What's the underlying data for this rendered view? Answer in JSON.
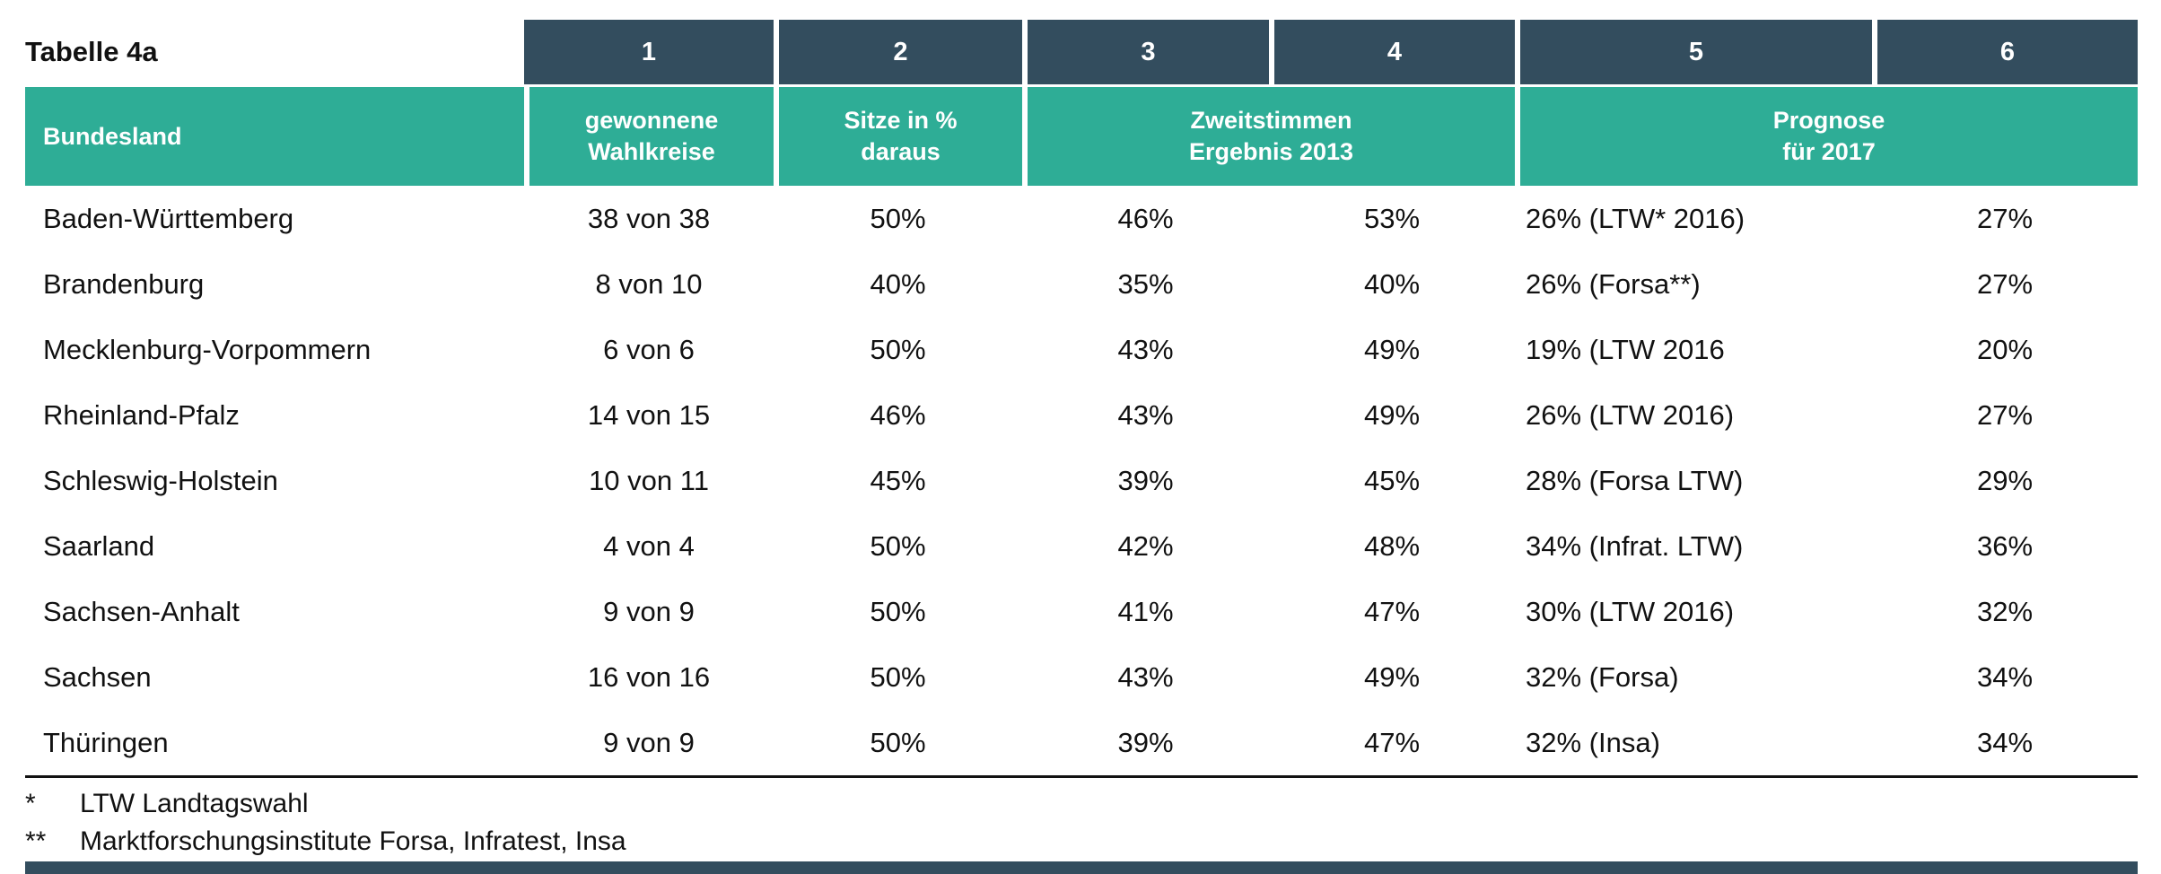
{
  "title": "Tabelle 4a",
  "colors": {
    "header_dark": "#334d5e",
    "header_teal": "#2ead96",
    "text": "#111111"
  },
  "table": {
    "number_row": [
      "1",
      "2",
      "3",
      "4",
      "5",
      "6"
    ],
    "header": {
      "bundesland": "Bundesland",
      "wahlkreise": "gewonnene\nWahlkreise",
      "sitze": "Sitze in %\ndaraus",
      "zweitstimmen": "Zweitstimmen\nErgebnis 2013",
      "prognose": "Prognose\nfür 2017"
    },
    "rows": [
      {
        "bundesland": "Baden-Württemberg",
        "wahlkreise": "38 von 38",
        "sitze": "50%",
        "zweit_a": "46%",
        "zweit_b": "53%",
        "prognose_a": "26% (LTW* 2016)",
        "prognose_b": "27%"
      },
      {
        "bundesland": "Brandenburg",
        "wahlkreise": "8 von 10",
        "sitze": "40%",
        "zweit_a": "35%",
        "zweit_b": "40%",
        "prognose_a": "26% (Forsa**)",
        "prognose_b": "27%"
      },
      {
        "bundesland": "Mecklenburg-Vorpommern",
        "wahlkreise": "6 von 6",
        "sitze": "50%",
        "zweit_a": "43%",
        "zweit_b": "49%",
        "prognose_a": "19% (LTW 2016",
        "prognose_b": "20%"
      },
      {
        "bundesland": "Rheinland-Pfalz",
        "wahlkreise": "14 von 15",
        "sitze": "46%",
        "zweit_a": "43%",
        "zweit_b": "49%",
        "prognose_a": "26% (LTW 2016)",
        "prognose_b": "27%"
      },
      {
        "bundesland": "Schleswig-Holstein",
        "wahlkreise": "10 von 11",
        "sitze": "45%",
        "zweit_a": "39%",
        "zweit_b": "45%",
        "prognose_a": "28% (Forsa LTW)",
        "prognose_b": "29%"
      },
      {
        "bundesland": "Saarland",
        "wahlkreise": "4 von 4",
        "sitze": "50%",
        "zweit_a": "42%",
        "zweit_b": "48%",
        "prognose_a": "34% (Infrat. LTW)",
        "prognose_b": "36%"
      },
      {
        "bundesland": "Sachsen-Anhalt",
        "wahlkreise": "9 von 9",
        "sitze": "50%",
        "zweit_a": "41%",
        "zweit_b": "47%",
        "prognose_a": "30% (LTW 2016)",
        "prognose_b": "32%"
      },
      {
        "bundesland": "Sachsen",
        "wahlkreise": "16 von 16",
        "sitze": "50%",
        "zweit_a": "43%",
        "zweit_b": "49%",
        "prognose_a": "32% (Forsa)",
        "prognose_b": "34%"
      },
      {
        "bundesland": "Thüringen",
        "wahlkreise": "9 von 9",
        "sitze": "50%",
        "zweit_a": "39%",
        "zweit_b": "47%",
        "prognose_a": "32% (Insa)",
        "prognose_b": "34%"
      }
    ]
  },
  "footnotes": [
    {
      "marker": "*",
      "text": "LTW Landtagswahl"
    },
    {
      "marker": "**",
      "text": "Marktforschungsinstitute Forsa, Infratest, Insa"
    }
  ],
  "chart_data": {
    "type": "table",
    "title": "Tabelle 4a",
    "columns": [
      "Bundesland",
      "1 gewonnene Wahlkreise",
      "2 Sitze in % daraus",
      "3 Zweitstimmen Ergebnis 2013",
      "4 Zweitstimmen Ergebnis 2013",
      "5 Prognose für 2017",
      "6 Prognose für 2017"
    ],
    "rows": [
      [
        "Baden-Württemberg",
        "38 von 38",
        "50%",
        "46%",
        "53%",
        "26% (LTW* 2016)",
        "27%"
      ],
      [
        "Brandenburg",
        "8 von 10",
        "40%",
        "35%",
        "40%",
        "26% (Forsa**)",
        "27%"
      ],
      [
        "Mecklenburg-Vorpommern",
        "6 von 6",
        "50%",
        "43%",
        "49%",
        "19% (LTW 2016",
        "20%"
      ],
      [
        "Rheinland-Pfalz",
        "14 von 15",
        "46%",
        "43%",
        "49%",
        "26% (LTW 2016)",
        "27%"
      ],
      [
        "Schleswig-Holstein",
        "10 von 11",
        "45%",
        "39%",
        "45%",
        "28% (Forsa LTW)",
        "29%"
      ],
      [
        "Saarland",
        "4 von 4",
        "50%",
        "42%",
        "48%",
        "34% (Infrat. LTW)",
        "36%"
      ],
      [
        "Sachsen-Anhalt",
        "9 von 9",
        "50%",
        "41%",
        "47%",
        "30% (LTW 2016)",
        "32%"
      ],
      [
        "Sachsen",
        "16 von 16",
        "50%",
        "43%",
        "49%",
        "32% (Forsa)",
        "34%"
      ],
      [
        "Thüringen",
        "9 von 9",
        "50%",
        "39%",
        "47%",
        "32% (Insa)",
        "34%"
      ]
    ],
    "footnotes": [
      "* LTW Landtagswahl",
      "** Marktforschungsinstitute Forsa, Infratest, Insa"
    ]
  }
}
